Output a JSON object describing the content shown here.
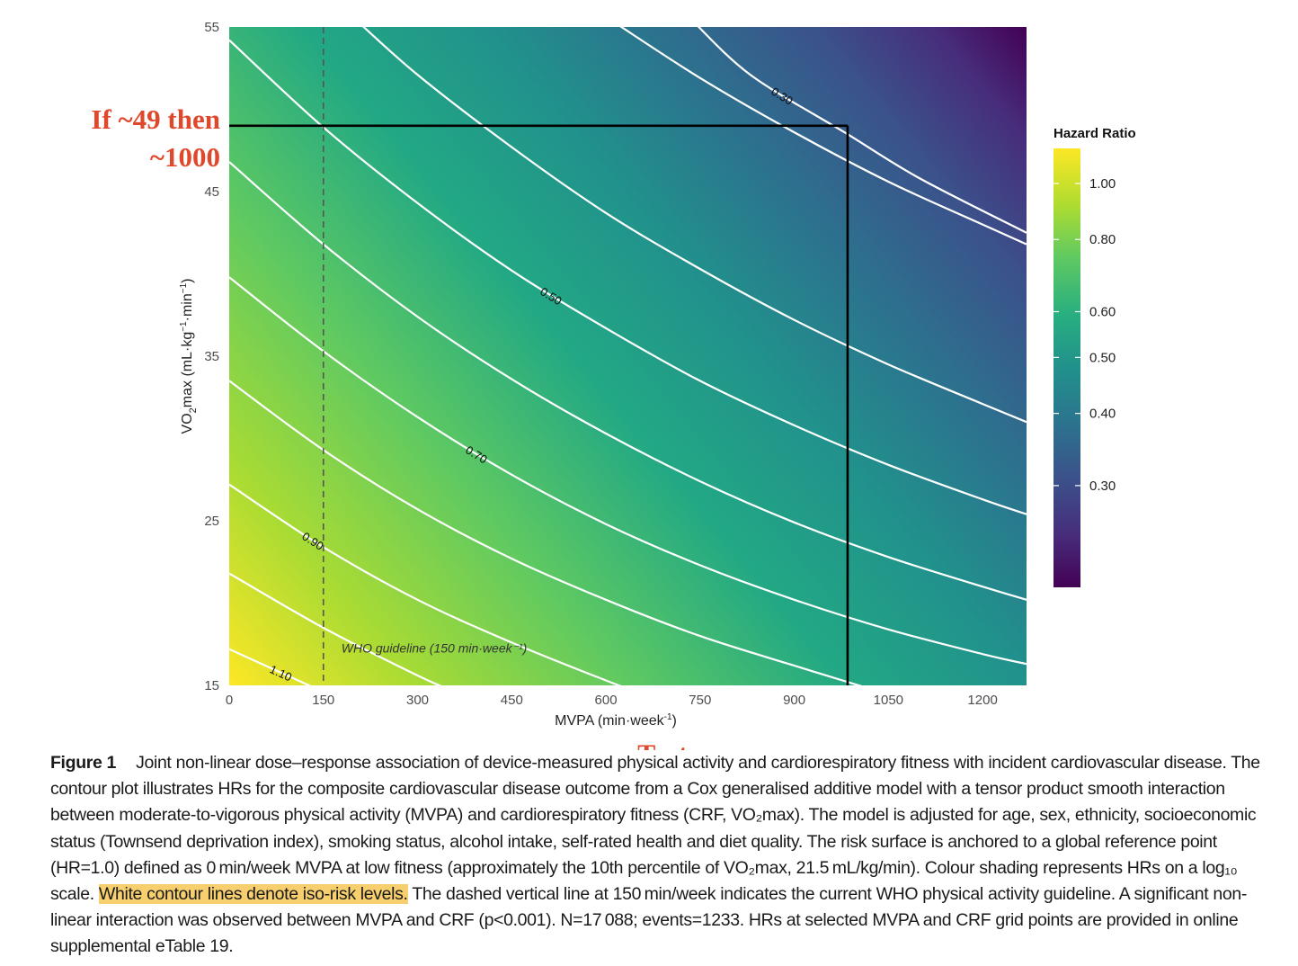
{
  "chart_data": {
    "type": "heatmap",
    "title": "",
    "xlabel": "MVPA (min·week⁻¹)",
    "ylabel": "VO₂max (mL·kg⁻¹·min⁻¹)",
    "xlim": [
      0,
      1270
    ],
    "ylim": [
      15,
      55
    ],
    "x_ticks": [
      0,
      150,
      300,
      450,
      600,
      750,
      900,
      1050,
      1200
    ],
    "y_ticks": [
      15,
      25,
      35,
      45,
      55
    ],
    "colorscale": "viridis",
    "color_scale_type": "log10",
    "legend": {
      "title": "Hazard Ratio",
      "ticks": [
        "1.00",
        "0.80",
        "0.60",
        "0.50",
        "0.40",
        "0.30"
      ],
      "tick_values": [
        1.0,
        0.8,
        0.6,
        0.5,
        0.4,
        0.3
      ],
      "range": [
        0.2,
        1.15
      ],
      "placement": "right"
    },
    "contours": [
      {
        "label": "1.10",
        "points": [
          [
            0,
            17.2
          ],
          [
            150,
            14.6
          ]
        ]
      },
      {
        "label": "",
        "points": [
          [
            0,
            21.8
          ],
          [
            150,
            18.5
          ],
          [
            300,
            15.6
          ],
          [
            360,
            14.6
          ]
        ]
      },
      {
        "label": "0.90",
        "points": [
          [
            0,
            27.2
          ],
          [
            150,
            23.4
          ],
          [
            300,
            20.2
          ],
          [
            450,
            17.6
          ],
          [
            600,
            15.3
          ],
          [
            650,
            14.6
          ]
        ]
      },
      {
        "label": "",
        "points": [
          [
            0,
            33.5
          ],
          [
            150,
            29.3
          ],
          [
            300,
            25.7
          ],
          [
            450,
            22.7
          ],
          [
            600,
            20.2
          ],
          [
            750,
            18.0
          ],
          [
            900,
            16.2
          ],
          [
            1020,
            14.8
          ]
        ]
      },
      {
        "label": "0.70",
        "points": [
          [
            0,
            39.8
          ],
          [
            150,
            35.3
          ],
          [
            300,
            31.3
          ],
          [
            450,
            27.8
          ],
          [
            600,
            24.8
          ],
          [
            750,
            22.3
          ],
          [
            900,
            20.2
          ],
          [
            1050,
            18.4
          ],
          [
            1200,
            16.9
          ],
          [
            1270,
            16.3
          ]
        ]
      },
      {
        "label": "",
        "points": [
          [
            0,
            46.8
          ],
          [
            150,
            41.8
          ],
          [
            300,
            37.4
          ],
          [
            450,
            33.6
          ],
          [
            600,
            30.3
          ],
          [
            750,
            27.4
          ],
          [
            900,
            24.9
          ],
          [
            1050,
            22.8
          ],
          [
            1200,
            21.0
          ],
          [
            1270,
            20.2
          ]
        ]
      },
      {
        "label": "0.50",
        "points": [
          [
            0,
            54.2
          ],
          [
            150,
            48.9
          ],
          [
            300,
            44.3
          ],
          [
            450,
            40.2
          ],
          [
            600,
            36.7
          ],
          [
            750,
            33.5
          ],
          [
            900,
            30.8
          ],
          [
            1050,
            28.4
          ],
          [
            1200,
            26.3
          ],
          [
            1270,
            25.4
          ]
        ]
      },
      {
        "label": "",
        "points": [
          [
            200,
            55.5
          ],
          [
            300,
            52.1
          ],
          [
            450,
            47.7
          ],
          [
            600,
            43.7
          ],
          [
            750,
            40.3
          ],
          [
            900,
            37.2
          ],
          [
            1050,
            34.5
          ],
          [
            1200,
            32.1
          ],
          [
            1270,
            31.0
          ]
        ]
      },
      {
        "label": "",
        "points": [
          [
            605,
            55.5
          ],
          [
            750,
            51.9
          ],
          [
            900,
            48.6
          ],
          [
            1050,
            45.6
          ],
          [
            1200,
            43.0
          ],
          [
            1270,
            41.8
          ]
        ]
      },
      {
        "label": "0.30",
        "points": [
          [
            735,
            55.5
          ],
          [
            830,
            52.1
          ],
          [
            980,
            48.6
          ],
          [
            1100,
            45.8
          ],
          [
            1270,
            42.5
          ]
        ]
      }
    ],
    "reference_lines": [
      {
        "orientation": "vertical",
        "x": 150,
        "style": "dashed",
        "label": "WHO guideline (150 min·week⁻¹)"
      }
    ]
  },
  "annotations": {
    "readout_lines": {
      "vo2max": 49,
      "mvpa": 985
    },
    "readout_line1": "If ~49 then",
    "readout_line2": "~1000",
    "text_marker": "Text"
  },
  "caption": {
    "figure_label": "Figure 1",
    "text_before": "Joint non-linear dose–response association of device-measured physical activity and cardiorespiratory fitness with incident cardiovascular disease. The contour plot illustrates HRs for the composite cardiovascular disease outcome from a Cox generalised additive model with a tensor product smooth interaction between moderate-to-vigorous physical activity (MVPA) and cardiorespiratory fitness (CRF, VO₂max). The model is adjusted for age, sex, ethnicity, socioeconomic status (Townsend deprivation index), smoking status, alcohol intake, self-rated health and diet quality. The risk surface is anchored to a global reference point (HR=1.0) defined as 0 min/week MVPA at low fitness (approximately the 10th percentile of VO₂max, 21.5 mL/kg/min). Colour shading represents HRs on a log₁₀ scale. ",
    "highlighted": "White contour lines denote iso-risk levels.",
    "text_after": " The dashed vertical line at 150 min/week indicates the current WHO physical activity guideline. A significant non-linear interaction was observed between MVPA and CRF (p<0.001). N=17 088; events=1233. HRs at selected MVPA and CRF grid points are provided in online supplemental eTable 19."
  }
}
